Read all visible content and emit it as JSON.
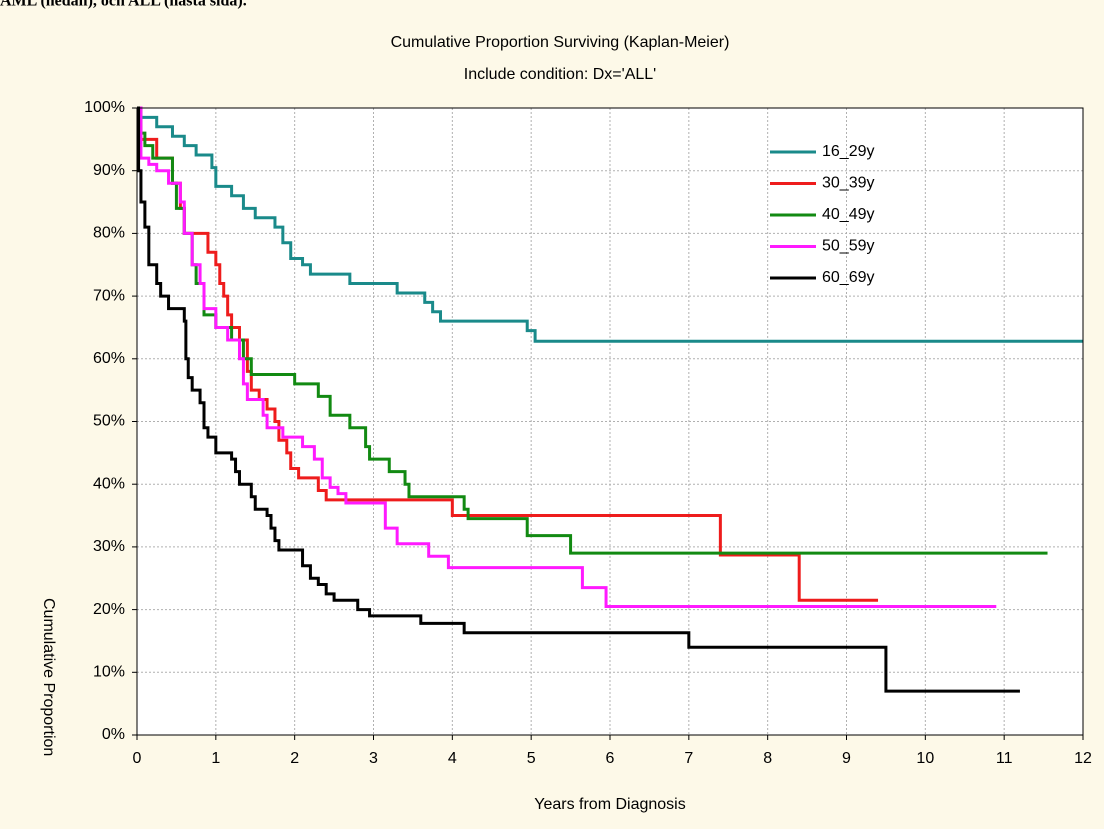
{
  "caption": "AML (nedan), och ALL (nästa sida).",
  "chart_data": {
    "type": "step",
    "title": "Cumulative Proportion Surviving (Kaplan-Meier)",
    "subtitle": "Include condition: Dx='ALL'",
    "xlabel": "Years from Diagnosis",
    "ylabel": "Cumulative Proportion",
    "xlim": [
      0,
      12
    ],
    "ylim": [
      0,
      100
    ],
    "xticks": [
      0,
      1,
      2,
      3,
      4,
      5,
      6,
      7,
      8,
      9,
      10,
      11,
      12
    ],
    "yticks": [
      {
        "value": 0,
        "label": "0%"
      },
      {
        "value": 10,
        "label": "10%"
      },
      {
        "value": 20,
        "label": "20%"
      },
      {
        "value": 30,
        "label": "30%"
      },
      {
        "value": 40,
        "label": "40%"
      },
      {
        "value": 50,
        "label": "50%"
      },
      {
        "value": 60,
        "label": "60%"
      },
      {
        "value": 70,
        "label": "70%"
      },
      {
        "value": 80,
        "label": "80%"
      },
      {
        "value": 90,
        "label": "90%"
      },
      {
        "value": 100,
        "label": "100%"
      }
    ],
    "grid": true,
    "legend": "upper right",
    "series": [
      {
        "name": "16_29y",
        "color": "#1a8a8a",
        "x": [
          0,
          0.05,
          0.25,
          0.45,
          0.6,
          0.75,
          0.95,
          1.0,
          1.2,
          1.35,
          1.5,
          1.75,
          1.85,
          1.95,
          2.1,
          2.2,
          2.7,
          3.3,
          3.65,
          3.75,
          3.85,
          4.95,
          5.05,
          12
        ],
        "values": [
          100,
          98.5,
          97,
          95.5,
          94,
          92.5,
          90.5,
          87.5,
          86,
          84,
          82.5,
          81,
          78.5,
          76,
          75,
          73.5,
          72,
          70.5,
          69,
          67.5,
          66,
          64.5,
          62.8,
          62.8
        ]
      },
      {
        "name": "30_39y",
        "color": "#ee1c1c",
        "x": [
          0,
          0.05,
          0.25,
          0.45,
          0.55,
          0.6,
          0.9,
          1.0,
          1.05,
          1.1,
          1.15,
          1.2,
          1.3,
          1.4,
          1.45,
          1.55,
          1.65,
          1.75,
          1.8,
          1.9,
          1.95,
          2.05,
          2.3,
          2.4,
          4.0,
          7.4,
          8.4,
          9.4
        ],
        "values": [
          100,
          95,
          92,
          88,
          84,
          80,
          77,
          75,
          72,
          70,
          67,
          65,
          63,
          58,
          55,
          53.5,
          52,
          50,
          47,
          45,
          42.5,
          41,
          39,
          37.5,
          35,
          28.7,
          21.5,
          21.5
        ]
      },
      {
        "name": "40_49y",
        "color": "#128a12",
        "x": [
          0,
          0.05,
          0.1,
          0.2,
          0.45,
          0.5,
          0.6,
          0.7,
          0.75,
          0.85,
          1.0,
          1.2,
          1.35,
          1.45,
          2.0,
          2.3,
          2.45,
          2.7,
          2.9,
          2.95,
          3.2,
          3.4,
          3.45,
          4.15,
          4.2,
          4.95,
          5.5,
          11.55
        ],
        "values": [
          100,
          96,
          94,
          92,
          88,
          84,
          80,
          75,
          72,
          67,
          65,
          63,
          60,
          57.5,
          56,
          54,
          51,
          49,
          46,
          44,
          42,
          40,
          38,
          36,
          34.5,
          31.8,
          29,
          29
        ]
      },
      {
        "name": "50_59y",
        "color": "#ff1aff",
        "x": [
          0,
          0.05,
          0.15,
          0.25,
          0.4,
          0.55,
          0.6,
          0.7,
          0.8,
          0.85,
          1.0,
          1.15,
          1.3,
          1.35,
          1.4,
          1.6,
          1.65,
          1.85,
          2.1,
          2.25,
          2.35,
          2.45,
          2.55,
          2.65,
          3.15,
          3.3,
          3.7,
          3.95,
          5.65,
          5.95,
          10.9
        ],
        "values": [
          100,
          92,
          91,
          90,
          88,
          85,
          80,
          75,
          72,
          68,
          65,
          63,
          60,
          56,
          53.5,
          51,
          49,
          47.5,
          46,
          44,
          41,
          39.5,
          38.5,
          37,
          33,
          30.5,
          28.5,
          26.7,
          23.5,
          20.5,
          20.5
        ]
      },
      {
        "name": "60_69y",
        "color": "#000000",
        "x": [
          0,
          0.02,
          0.05,
          0.1,
          0.15,
          0.25,
          0.3,
          0.4,
          0.6,
          0.62,
          0.65,
          0.7,
          0.8,
          0.85,
          0.9,
          1.0,
          1.2,
          1.25,
          1.3,
          1.45,
          1.5,
          1.65,
          1.7,
          1.75,
          1.8,
          2.1,
          2.2,
          2.3,
          2.4,
          2.5,
          2.8,
          2.95,
          3.6,
          4.15,
          7.0,
          9.5,
          11.2
        ],
        "values": [
          100,
          90,
          85,
          81,
          75,
          72,
          70,
          68,
          66,
          60,
          57,
          55,
          53,
          49,
          47.5,
          45,
          44,
          42,
          40,
          38,
          36,
          35,
          33,
          31,
          29.5,
          27,
          25,
          24,
          22.5,
          21.5,
          20,
          19,
          17.8,
          16.3,
          14,
          7,
          7
        ]
      }
    ]
  }
}
